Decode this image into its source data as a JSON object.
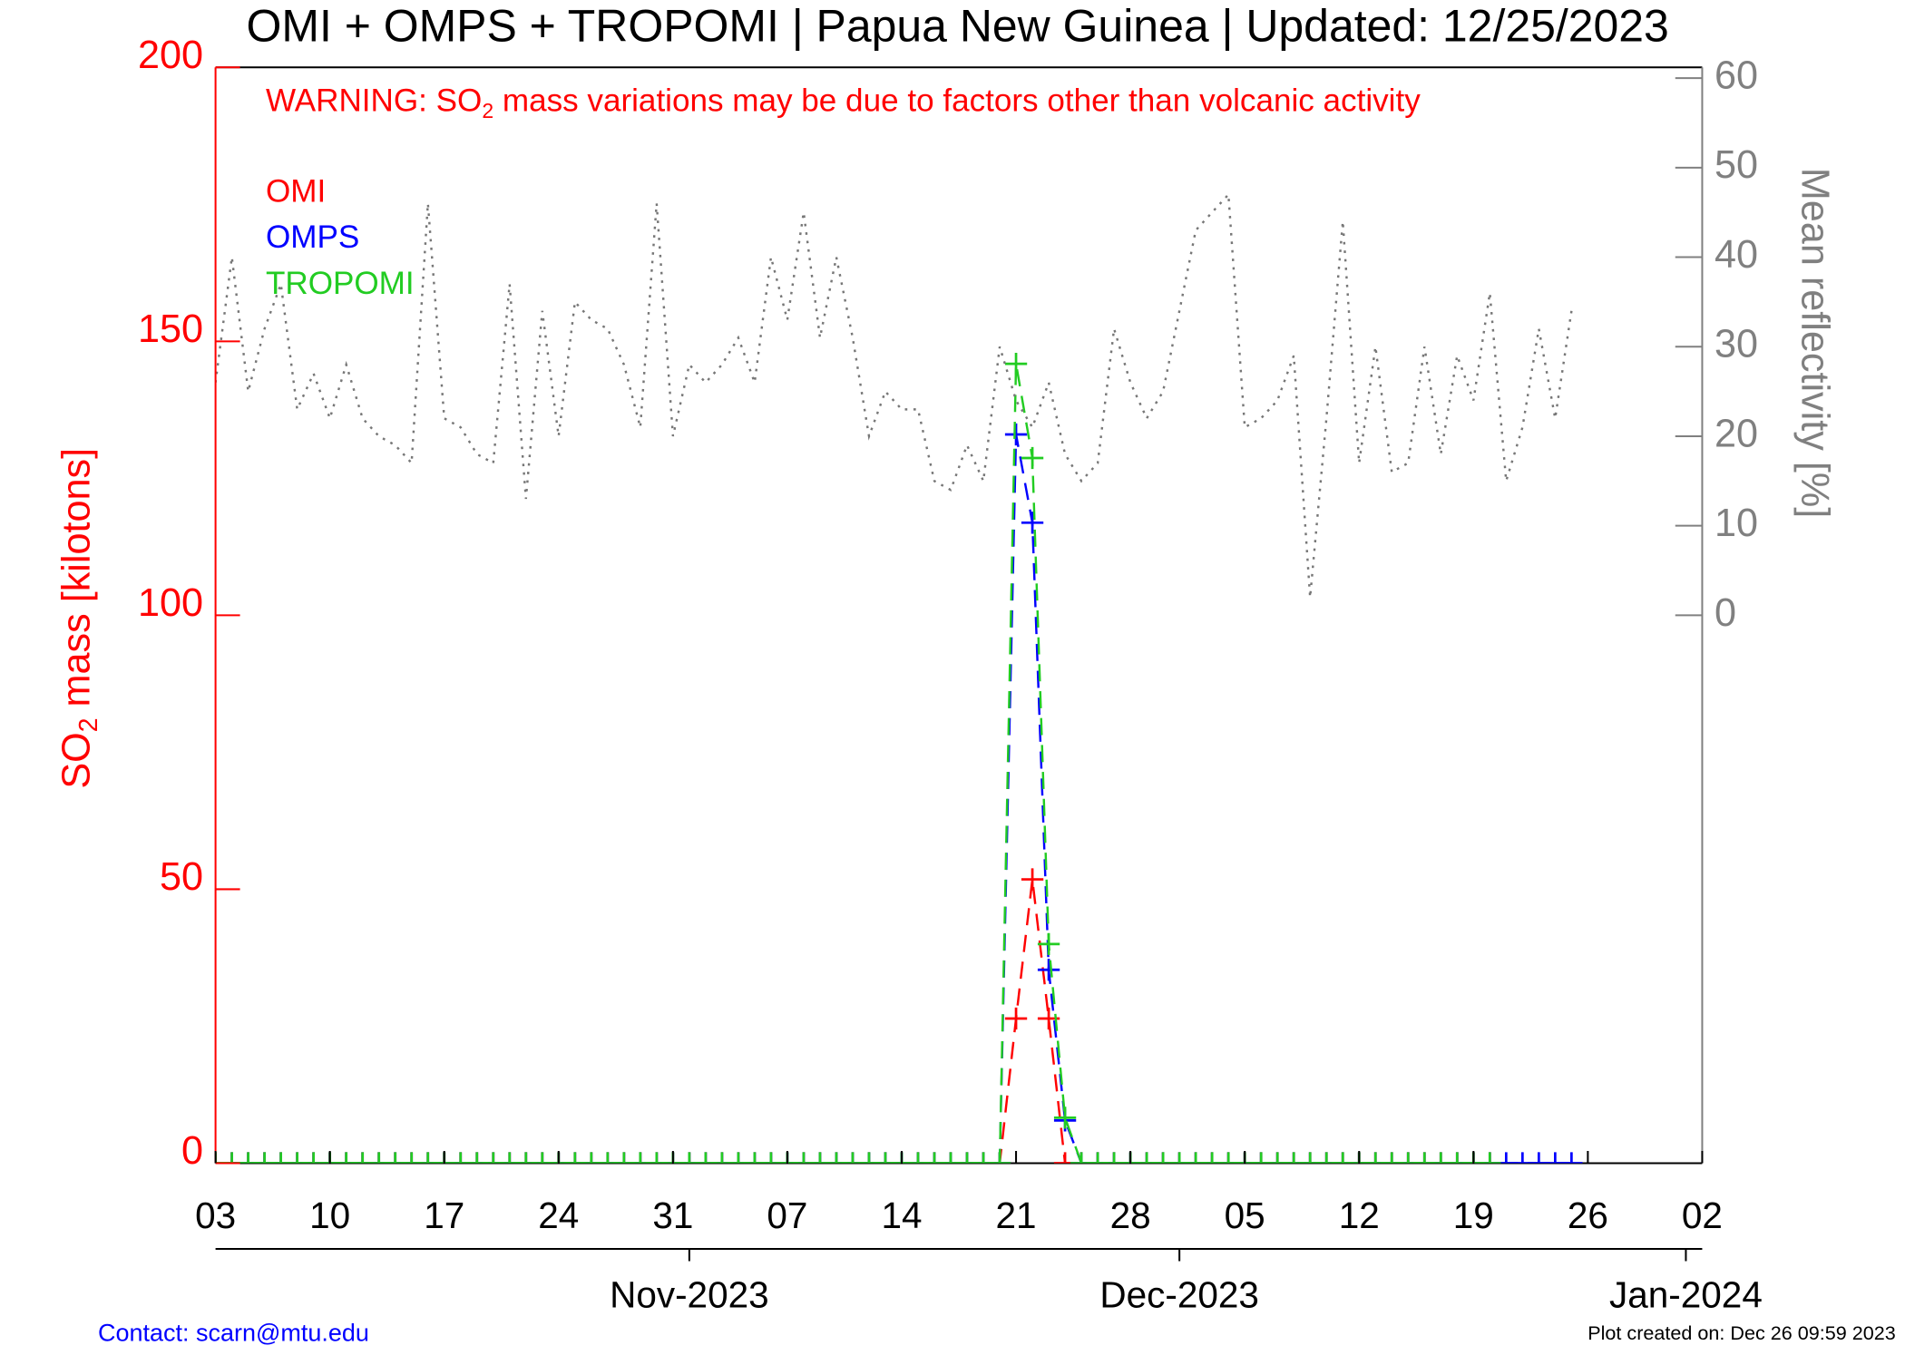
{
  "chart_data": {
    "type": "line",
    "title": "OMI + OMPS + TROPOMI | Papua New Guinea | Updated: 12/25/2023",
    "warning": [
      "WARNING: SO",
      "2",
      " mass variations may be due to factors other than volcanic activity"
    ],
    "y_label": [
      "SO",
      "2",
      " mass [kilotons]"
    ],
    "y2_label": "Mean reflectivity [%]",
    "contact": "Contact: scarn@mtu.edu",
    "created": "Plot created on: Dec 26 09:59 2023",
    "x": [
      "2023-10-03",
      "2023-10-04",
      "2023-10-05",
      "2023-10-06",
      "2023-10-07",
      "2023-10-08",
      "2023-10-09",
      "2023-10-10",
      "2023-10-11",
      "2023-10-12",
      "2023-10-13",
      "2023-10-14",
      "2023-10-15",
      "2023-10-16",
      "2023-10-17",
      "2023-10-18",
      "2023-10-19",
      "2023-10-20",
      "2023-10-21",
      "2023-10-22",
      "2023-10-23",
      "2023-10-24",
      "2023-10-25",
      "2023-10-26",
      "2023-10-27",
      "2023-10-28",
      "2023-10-29",
      "2023-10-30",
      "2023-10-31",
      "2023-11-01",
      "2023-11-02",
      "2023-11-03",
      "2023-11-04",
      "2023-11-05",
      "2023-11-06",
      "2023-11-07",
      "2023-11-08",
      "2023-11-09",
      "2023-11-10",
      "2023-11-11",
      "2023-11-12",
      "2023-11-13",
      "2023-11-14",
      "2023-11-15",
      "2023-11-16",
      "2023-11-17",
      "2023-11-18",
      "2023-11-19",
      "2023-11-20",
      "2023-11-21",
      "2023-11-22",
      "2023-11-23",
      "2023-11-24",
      "2023-11-25",
      "2023-11-26",
      "2023-11-27",
      "2023-11-28",
      "2023-11-29",
      "2023-11-30",
      "2023-12-01",
      "2023-12-02",
      "2023-12-03",
      "2023-12-04",
      "2023-12-05",
      "2023-12-06",
      "2023-12-07",
      "2023-12-08",
      "2023-12-09",
      "2023-12-10",
      "2023-12-11",
      "2023-12-12",
      "2023-12-13",
      "2023-12-14",
      "2023-12-15",
      "2023-12-16",
      "2023-12-17",
      "2023-12-18",
      "2023-12-19",
      "2023-12-20",
      "2023-12-21",
      "2023-12-22",
      "2023-12-23",
      "2023-12-24",
      "2023-12-25"
    ],
    "series": [
      {
        "name": "OMI",
        "color": "#ff0000",
        "dash": "dashed",
        "marker": "+",
        "axis": "y",
        "values": [
          0,
          0,
          0,
          0,
          0,
          0,
          0,
          0,
          0,
          0,
          0,
          0,
          0,
          0,
          0,
          0,
          0,
          0,
          0,
          0,
          0,
          0,
          0,
          0,
          0,
          0,
          0,
          0,
          0,
          0,
          0,
          0,
          0,
          0,
          0,
          0,
          0,
          0,
          0,
          0,
          0,
          0,
          0,
          0,
          0,
          0,
          0,
          0,
          0,
          26.4,
          51.8,
          26.4,
          0,
          0,
          0,
          0,
          0,
          0,
          0,
          0,
          0,
          0,
          0,
          0,
          0,
          0,
          0,
          0,
          0,
          0,
          0,
          0,
          0,
          0,
          0,
          0,
          0,
          0,
          0,
          null,
          null,
          null,
          null,
          null
        ]
      },
      {
        "name": "OMPS",
        "color": "#0000ff",
        "dash": "dashed",
        "marker": "+",
        "axis": "y",
        "values": [
          0,
          0,
          0,
          0,
          0,
          0,
          0,
          0,
          0,
          0,
          0,
          0,
          0,
          0,
          0,
          0,
          0,
          0,
          0,
          0,
          0,
          0,
          0,
          0,
          0,
          0,
          0,
          0,
          0,
          0,
          0,
          0,
          0,
          0,
          0,
          0,
          0,
          0,
          0,
          0,
          0,
          0,
          0,
          0,
          0,
          0,
          0,
          0,
          0,
          133,
          116.9,
          35.3,
          7.8,
          0,
          0,
          0,
          0,
          0,
          0,
          0,
          0,
          0,
          0,
          0,
          0,
          0,
          0,
          0,
          0,
          0,
          0,
          0,
          0,
          0,
          0,
          0,
          0,
          0,
          0,
          0,
          0,
          0,
          0,
          0
        ]
      },
      {
        "name": "TROPOMI",
        "color": "#22cc22",
        "dash": "dashed",
        "marker": "+",
        "axis": "y",
        "values": [
          0,
          0,
          0,
          0,
          0,
          0,
          0,
          0,
          0,
          0,
          0,
          0,
          0,
          0,
          0,
          0,
          0,
          0,
          0,
          0,
          0,
          0,
          0,
          0,
          0,
          0,
          0,
          0,
          0,
          0,
          0,
          0,
          0,
          0,
          0,
          0,
          0,
          0,
          0,
          0,
          0,
          0,
          0,
          0,
          0,
          0,
          0,
          0,
          0,
          145.9,
          128.7,
          40,
          8.3,
          0,
          0,
          0,
          0,
          0,
          0,
          0,
          0,
          0,
          0,
          0,
          0,
          0,
          0,
          0,
          0,
          0,
          0,
          0,
          0,
          0,
          0,
          0,
          0,
          0,
          0,
          null,
          null,
          null,
          null,
          null
        ]
      },
      {
        "name": "Mean reflectivity",
        "color": "#777777",
        "dash": "dotted",
        "marker": "none",
        "axis": "y2",
        "values": [
          26,
          40,
          25,
          32,
          37,
          23,
          27,
          22,
          28,
          22,
          20,
          19,
          17,
          46,
          22,
          21,
          18,
          17,
          37,
          13,
          34,
          20,
          35,
          33,
          32,
          28,
          21,
          46,
          20,
          28,
          26,
          28,
          31,
          26,
          40,
          33,
          45,
          31,
          40,
          31,
          20,
          25,
          23,
          23,
          15,
          14,
          19,
          15,
          30,
          24,
          21,
          26,
          18,
          15,
          17,
          32,
          26,
          22,
          25,
          34,
          43,
          45,
          47,
          21,
          22,
          24,
          29,
          2,
          22,
          44,
          17,
          30,
          16,
          17,
          30,
          18,
          29,
          24,
          36,
          15,
          21,
          32,
          22,
          34
        ]
      }
    ],
    "xlim": [
      "2023-10-03",
      "2024-01-02"
    ],
    "xticks": [
      {
        "value": "2023-10-03",
        "label": "03"
      },
      {
        "value": "2023-10-10",
        "label": "10"
      },
      {
        "value": "2023-10-17",
        "label": "17"
      },
      {
        "value": "2023-10-24",
        "label": "24"
      },
      {
        "value": "2023-10-31",
        "label": "31"
      },
      {
        "value": "2023-11-07",
        "label": "07"
      },
      {
        "value": "2023-11-14",
        "label": "14"
      },
      {
        "value": "2023-11-21",
        "label": "21"
      },
      {
        "value": "2023-11-28",
        "label": "28"
      },
      {
        "value": "2023-12-05",
        "label": "05"
      },
      {
        "value": "2023-12-12",
        "label": "12"
      },
      {
        "value": "2023-12-19",
        "label": "19"
      },
      {
        "value": "2023-12-26",
        "label": "26"
      },
      {
        "value": "2024-01-02",
        "label": "02"
      }
    ],
    "month_ticks": [
      {
        "value": "2023-11-01",
        "label": "Nov-2023"
      },
      {
        "value": "2023-12-01",
        "label": "Dec-2023"
      },
      {
        "value": "2024-01-01",
        "label": "Jan-2024"
      }
    ],
    "ylim": [
      0,
      200
    ],
    "yticks": [
      0,
      50,
      100,
      150,
      200
    ],
    "y_color": "#ff0000",
    "y2lim": [
      -61.2,
      61.2
    ],
    "y2ticks": [
      0,
      10,
      20,
      30,
      40,
      50,
      60
    ],
    "y2_color": "#808080"
  }
}
